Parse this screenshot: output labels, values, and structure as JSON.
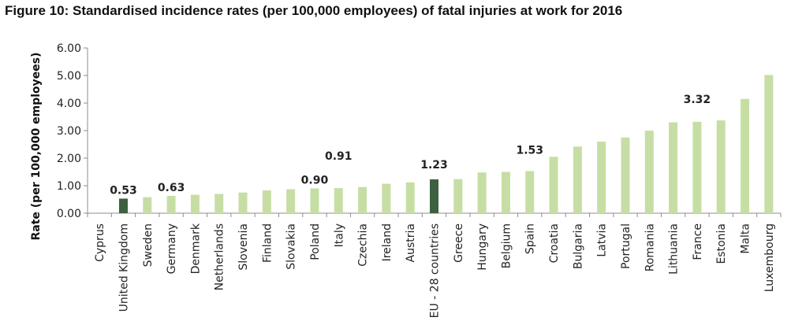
{
  "figure": {
    "number_label": "Figure 10",
    "title_text": ": Standardised incidence rates (per 100,000 employees) of fatal injuries at work for 2016"
  },
  "colors": {
    "bar_default": "#c6dea4",
    "bar_highlight": "#3d6140",
    "axis": "#8c8c8c"
  },
  "chart_data": {
    "type": "bar",
    "title": "Standardised incidence rates (per 100,000 employees) of fatal injuries at work for 2016",
    "xlabel": "",
    "ylabel": "Rate (per 100,000 employees)",
    "ylim": [
      0,
      6
    ],
    "yticks": [
      0,
      1,
      2,
      3,
      4,
      5,
      6
    ],
    "ytick_labels": [
      "0.00",
      "1.00",
      "2.00",
      "3.00",
      "4.00",
      "5.00",
      "6.00"
    ],
    "grid": false,
    "categories": [
      "Cyprus",
      "United Kingdom",
      "Sweden",
      "Germany",
      "Denmark",
      "Netherlands",
      "Slovenia",
      "Finland",
      "Slovakia",
      "Poland",
      "Italy",
      "Czechia",
      "Ireland",
      "Austria",
      "EU - 28 countries",
      "Greece",
      "Hungary",
      "Belgium",
      "Spain",
      "Croatia",
      "Bulgaria",
      "Latvia",
      "Portugal",
      "Romania",
      "Lithuania",
      "France",
      "Estonia",
      "Malta",
      "Luxembourg"
    ],
    "values": [
      0.0,
      0.53,
      0.58,
      0.63,
      0.67,
      0.7,
      0.75,
      0.83,
      0.87,
      0.9,
      0.91,
      0.95,
      1.07,
      1.12,
      1.23,
      1.24,
      1.48,
      1.5,
      1.53,
      2.05,
      2.42,
      2.6,
      2.75,
      3.0,
      3.3,
      3.32,
      3.37,
      4.15,
      5.02
    ],
    "highlighted": [
      "United Kingdom",
      "EU - 28 countries"
    ],
    "data_labels": [
      {
        "category": "United Kingdom",
        "text": "0.53"
      },
      {
        "category": "Germany",
        "text": "0.63"
      },
      {
        "category": "Poland",
        "text": "0.90"
      },
      {
        "category": "Italy",
        "text": "0.91"
      },
      {
        "category": "EU - 28 countries",
        "text": "1.23"
      },
      {
        "category": "Spain",
        "text": "1.53"
      },
      {
        "category": "France",
        "text": "3.32"
      }
    ]
  }
}
